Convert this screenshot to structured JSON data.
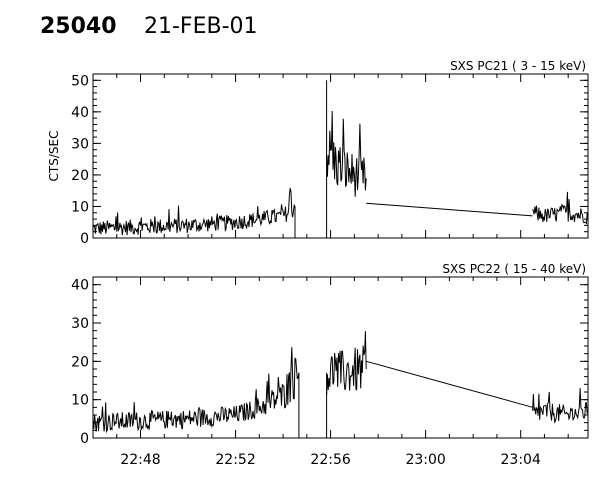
{
  "header": {
    "observation_id": "25040",
    "date": "21-FEB-01"
  },
  "chart_data": [
    {
      "type": "line",
      "title": "SXS PC21  (  3 - 15 keV)",
      "ylabel": "CTS/SEC",
      "xlabel": "",
      "ylim": [
        0,
        52
      ],
      "yticks": [
        0,
        10,
        20,
        30,
        40,
        50
      ],
      "xlim": [
        "22:46:00",
        "23:06:50"
      ],
      "xticks": [
        "22:48",
        "22:52",
        "22:56",
        "23:00",
        "23:04"
      ],
      "grid": false,
      "segments": [
        {
          "x": [
            "22:46:00",
            "22:50:00",
            "22:52:00",
            "22:53:00",
            "22:54:00",
            "22:54:30"
          ],
          "y": [
            3,
            4,
            5,
            6,
            7,
            10
          ]
        },
        {
          "x": [
            "22:55:50",
            "22:56:10",
            "22:56:30",
            "22:57:00",
            "22:57:30"
          ],
          "y": [
            28,
            24,
            22,
            20,
            19
          ]
        },
        {
          "x": [
            "22:57:30",
            "23:04:30"
          ],
          "y": [
            11,
            7
          ]
        },
        {
          "x": [
            "23:04:30",
            "23:05:00",
            "23:06:00",
            "23:06:50"
          ],
          "y": [
            8,
            7,
            8,
            7
          ]
        }
      ]
    },
    {
      "type": "line",
      "title": "SXS PC22  ( 15 - 40 keV)",
      "ylabel": "",
      "xlabel": "",
      "ylim": [
        0,
        42
      ],
      "yticks": [
        0,
        10,
        20,
        30,
        40
      ],
      "xlim": [
        "22:46:00",
        "23:06:50"
      ],
      "xticks": [
        "22:48",
        "22:52",
        "22:56",
        "23:00",
        "23:04"
      ],
      "grid": false,
      "segments": [
        {
          "x": [
            "22:46:00",
            "22:50:00",
            "22:52:00",
            "22:53:00",
            "22:54:00",
            "22:54:40"
          ],
          "y": [
            4,
            5,
            6,
            8,
            11,
            17
          ]
        },
        {
          "x": [
            "22:55:50",
            "22:56:30",
            "22:57:30"
          ],
          "y": [
            17,
            17,
            18
          ]
        },
        {
          "x": [
            "22:57:30",
            "23:04:30"
          ],
          "y": [
            20,
            8
          ]
        },
        {
          "x": [
            "23:04:30",
            "23:05:00",
            "23:06:00",
            "23:06:50"
          ],
          "y": [
            6,
            7,
            6,
            7
          ]
        }
      ]
    }
  ]
}
